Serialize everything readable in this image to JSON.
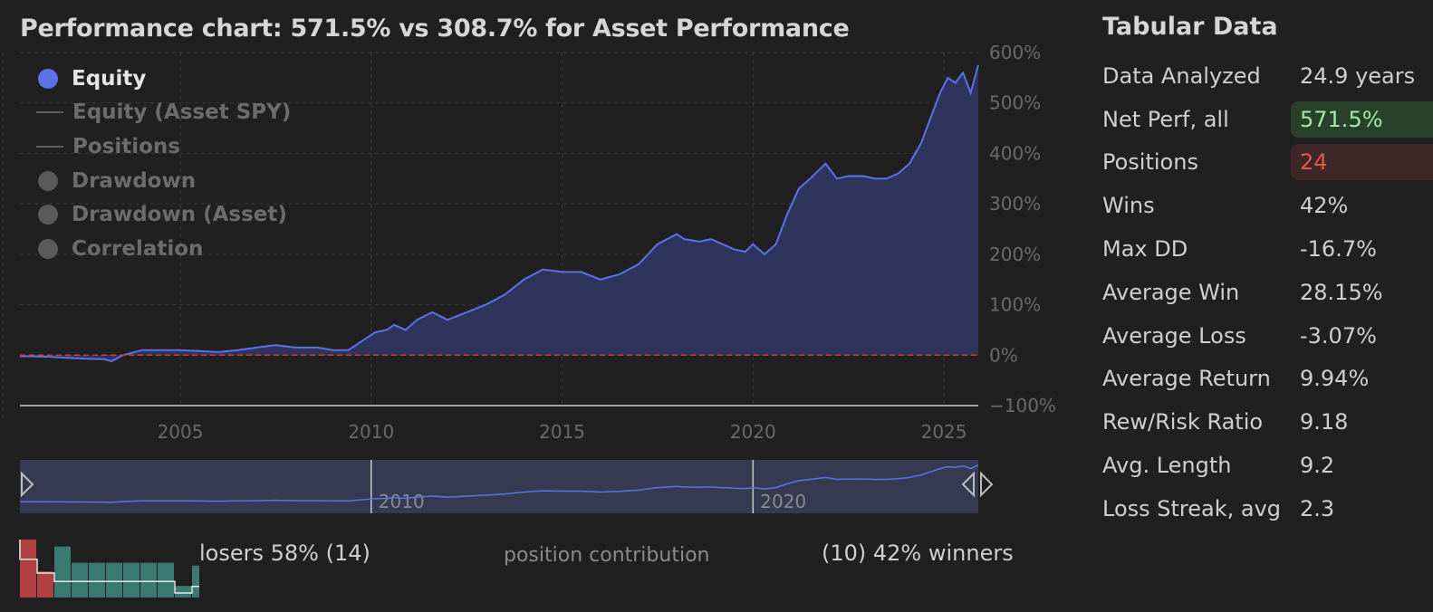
{
  "title": "Performance chart: 571.5% vs 308.7% for Asset Performance",
  "legend": [
    {
      "label": "Equity",
      "marker": "dot",
      "active": true
    },
    {
      "label": "Equity (Asset SPY)",
      "marker": "line",
      "active": false
    },
    {
      "label": "Positions",
      "marker": "line",
      "active": false
    },
    {
      "label": "Drawdown",
      "marker": "dot",
      "active": false
    },
    {
      "label": "Drawdown (Asset)",
      "marker": "dot",
      "active": false
    },
    {
      "label": "Correlation",
      "marker": "dot",
      "active": false
    }
  ],
  "colors": {
    "equity": "#5b73e6",
    "equity_fill": "#2f3660",
    "zero_line": "#d9382e",
    "winners": "#3a7a72",
    "losers": "#b24040"
  },
  "chart_data": {
    "type": "area",
    "series": [
      {
        "name": "Equity",
        "x": [
          2000.8,
          2001.5,
          2002.0,
          2002.5,
          2003.0,
          2003.2,
          2003.5,
          2004.0,
          2004.5,
          2005.0,
          2005.5,
          2006.0,
          2006.5,
          2007.0,
          2007.5,
          2008.0,
          2008.6,
          2009.0,
          2009.4,
          2009.8,
          2010.1,
          2010.4,
          2010.6,
          2010.9,
          2011.2,
          2011.6,
          2012.0,
          2012.5,
          2013.0,
          2013.5,
          2014.0,
          2014.5,
          2015.0,
          2015.5,
          2016.0,
          2016.5,
          2017.0,
          2017.5,
          2018.0,
          2018.2,
          2018.6,
          2018.9,
          2019.2,
          2019.5,
          2019.8,
          2020.0,
          2020.3,
          2020.6,
          2020.9,
          2021.2,
          2021.5,
          2021.9,
          2022.2,
          2022.5,
          2022.9,
          2023.2,
          2023.5,
          2023.8,
          2024.1,
          2024.4,
          2024.7,
          2024.9,
          2025.1,
          2025.3,
          2025.5,
          2025.7,
          2025.9
        ],
        "y": [
          -2,
          -3,
          -5,
          -7,
          -8,
          -12,
          0,
          10,
          10,
          10,
          8,
          6,
          10,
          15,
          20,
          15,
          15,
          10,
          10,
          30,
          45,
          50,
          60,
          50,
          70,
          85,
          70,
          85,
          100,
          120,
          150,
          170,
          165,
          165,
          150,
          160,
          180,
          220,
          240,
          230,
          225,
          230,
          220,
          210,
          205,
          220,
          200,
          220,
          280,
          330,
          350,
          380,
          350,
          355,
          355,
          350,
          350,
          360,
          380,
          420,
          480,
          520,
          550,
          540,
          560,
          520,
          575
        ]
      }
    ],
    "x_ticks": [
      "2005",
      "2010",
      "2015",
      "2020",
      "2025"
    ],
    "y_ticks": [
      "600%",
      "500%",
      "400%",
      "300%",
      "200%",
      "100%",
      "0%",
      "−100%"
    ],
    "ylim": [
      -100,
      600
    ],
    "xlim": [
      2000.8,
      2025.9
    ],
    "navigator_ticks": [
      "2010",
      "2020"
    ]
  },
  "stats": {
    "title": "Tabular Data",
    "rows": [
      {
        "label": "Data Analyzed",
        "value": "24.9 years",
        "style": ""
      },
      {
        "label": "Net Perf, all",
        "value": "571.5%",
        "style": "good"
      },
      {
        "label": "Positions",
        "value": "24",
        "style": "bad"
      },
      {
        "label": "Wins",
        "value": "42%",
        "style": ""
      },
      {
        "label": "Max DD",
        "value": "-16.7%",
        "style": ""
      },
      {
        "label": "Average Win",
        "value": "28.15%",
        "style": ""
      },
      {
        "label": "Average Loss",
        "value": "-3.07%",
        "style": ""
      },
      {
        "label": "Average Return",
        "value": "9.94%",
        "style": ""
      },
      {
        "label": "Rew/Risk Ratio",
        "value": "9.18",
        "style": ""
      },
      {
        "label": "Avg. Length",
        "value": "9.2",
        "style": ""
      },
      {
        "label": "Loss Streak, avg",
        "value": "2.3",
        "style": ""
      }
    ]
  },
  "histogram": {
    "losers_label": "losers 58% (14)",
    "middle_label": "position contribution",
    "winners_label": "(10) 42% winners",
    "bars": [
      {
        "type": "loser",
        "value": 1.0
      },
      {
        "type": "loser",
        "value": 0.45
      },
      {
        "type": "winner",
        "value": 0.88
      },
      {
        "type": "winner",
        "value": 0.6
      },
      {
        "type": "winner",
        "value": 0.6
      },
      {
        "type": "winner",
        "value": 0.6
      },
      {
        "type": "winner",
        "value": 0.6
      },
      {
        "type": "winner",
        "value": 0.6
      },
      {
        "type": "winner",
        "value": 0.6
      },
      {
        "type": "winner",
        "value": 0.2
      },
      {
        "type": "winner",
        "value": 0.55
      },
      {
        "type": "winner",
        "value": 0.95
      }
    ]
  }
}
